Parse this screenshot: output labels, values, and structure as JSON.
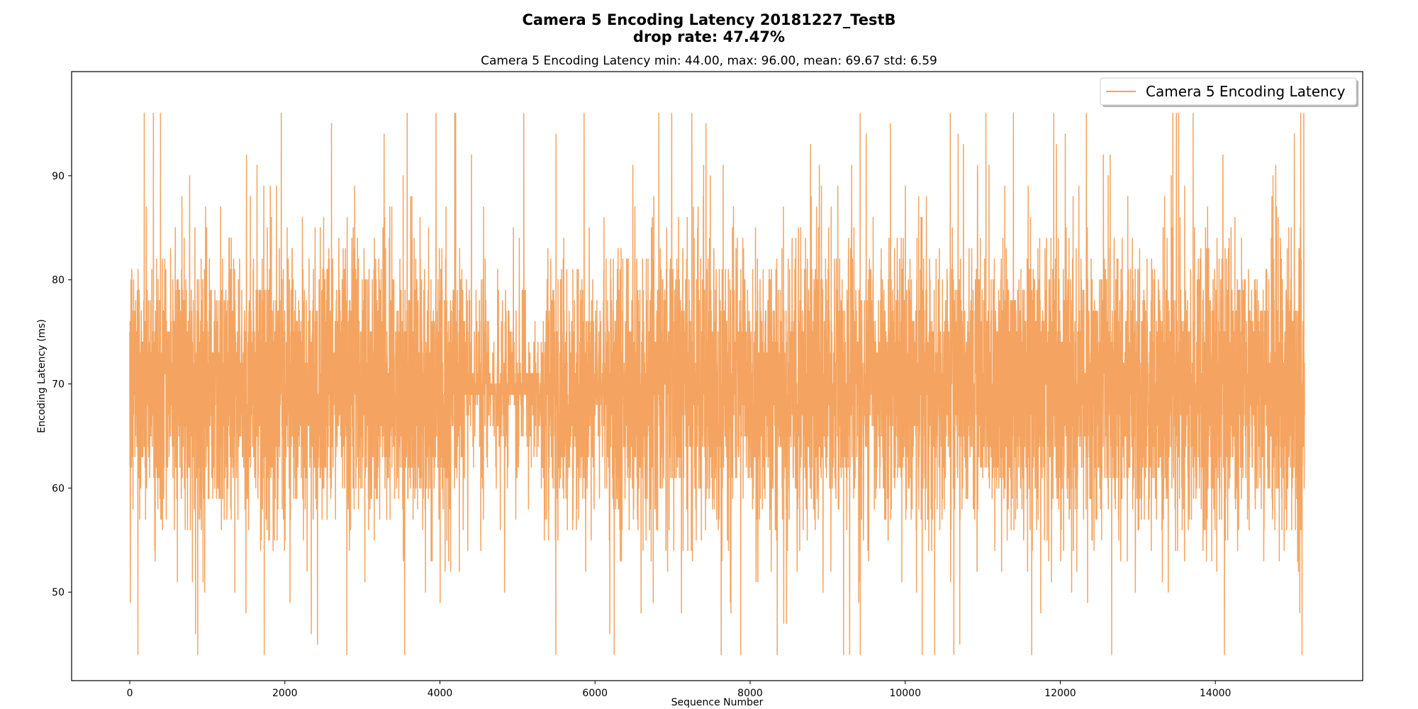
{
  "chart_data": {
    "type": "line",
    "title_line1": "Camera 5 Encoding Latency 20181227_TestB",
    "title_line2": "drop rate: 47.47%",
    "subtitle": "Camera 5 Encoding Latency min: 44.00, max: 96.00, mean: 69.67 std: 6.59",
    "xlabel": "Sequence Number",
    "ylabel": "Encoding Latency (ms)",
    "xlim": [
      -750,
      15900
    ],
    "ylim": [
      41.5,
      100
    ],
    "xticks": [
      0,
      2000,
      4000,
      6000,
      8000,
      10000,
      12000,
      14000
    ],
    "yticks": [
      50,
      60,
      70,
      80,
      90
    ],
    "grid": false,
    "legend_location": "upper right",
    "series": [
      {
        "name": "Camera 5 Encoding Latency",
        "color": "#f4a460",
        "x_start": 0,
        "x_end": 15150,
        "n_points": 7950,
        "seed": 20181227,
        "stats": {
          "min": 44.0,
          "max": 96.0,
          "mean": 69.67,
          "std": 6.59
        }
      }
    ]
  }
}
